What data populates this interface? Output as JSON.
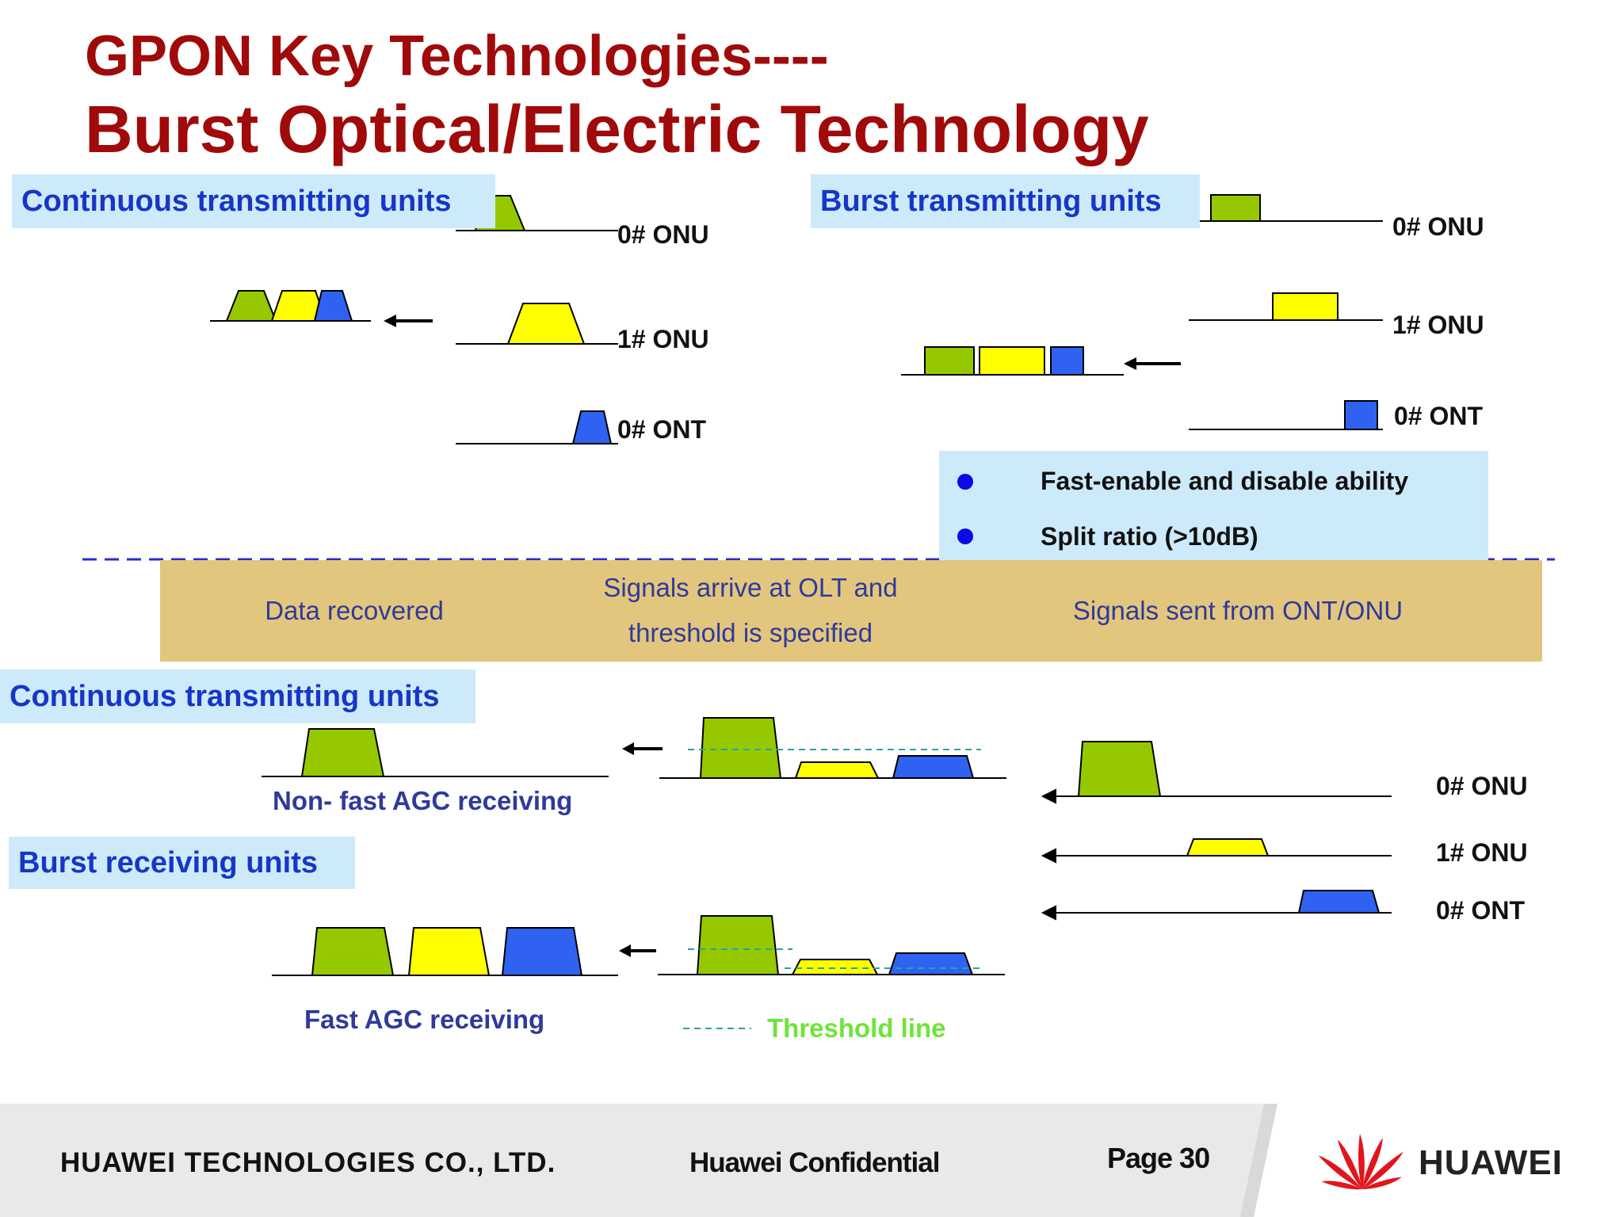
{
  "title": {
    "line1": "GPON Key  Technologies----",
    "line2": "Burst  Optical/Electric Technology"
  },
  "top_left": {
    "header": "Continuous transmitting units",
    "onu0": "0# ONU",
    "onu1": "1# ONU",
    "ont0": "0# ONT"
  },
  "top_right": {
    "header": "Burst transmitting units",
    "onu0": "0# ONU",
    "onu1": "1# ONU",
    "ont0": "0# ONT",
    "bullets": [
      "Fast-enable and disable ability",
      "Split ratio (>10dB)"
    ]
  },
  "band": {
    "left": "Data recovered",
    "middle_line1": "Signals arrive at OLT and",
    "middle_line2": "threshold is specified",
    "right": "Signals sent from ONT/ONU"
  },
  "bottom": {
    "continuous_header": "Continuous transmitting units",
    "non_fast_agc": "Non- fast AGC receiving",
    "burst_header": "Burst receiving units",
    "fast_agc": "Fast AGC receiving",
    "threshold_legend": "Threshold line",
    "onu0": "0# ONU",
    "onu1": "1# ONU",
    "ont0": "0# ONT"
  },
  "footer": {
    "company": "HUAWEI TECHNOLOGIES CO., LTD.",
    "confidential": "Huawei Confidential",
    "page": "Page 30",
    "logo_text": "HUAWEI"
  },
  "colors": {
    "title": "#a00a0a",
    "header_bg": "#cdeafa",
    "header_text": "#1736c8",
    "green": "#96c800",
    "yellow": "#ffff00",
    "blue": "#2f62f0",
    "band": "#e3c67d",
    "threshold": "#2aa3a0",
    "threshold_text": "#6ee43a",
    "logo_red": "#e1161c"
  }
}
